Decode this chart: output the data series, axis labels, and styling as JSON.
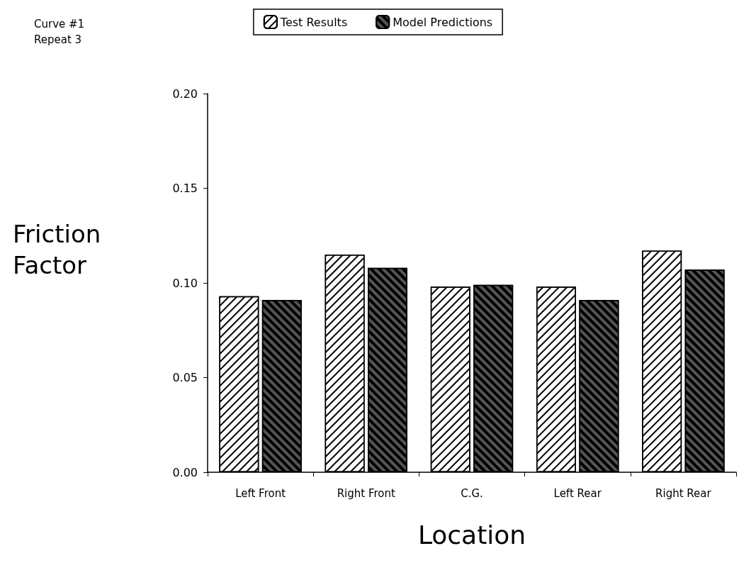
{
  "chart_data": {
    "type": "bar",
    "xlabel": "Location",
    "ylabel": "Friction Factor",
    "annotations": [
      "Curve #1",
      "Repeat 3"
    ],
    "categories": [
      "Left Front",
      "Right Front",
      "C.G.",
      "Left Rear",
      "Right Rear"
    ],
    "series": [
      {
        "name": "Test Results",
        "color": "#ffffff",
        "values": [
          0.093,
          0.115,
          0.098,
          0.098,
          0.117
        ]
      },
      {
        "name": "Model Predictions",
        "color": "#555555",
        "values": [
          0.091,
          0.108,
          0.099,
          0.091,
          0.107
        ]
      }
    ],
    "ylim": [
      0,
      0.2
    ],
    "yticks": [
      {
        "value": 0,
        "label": "0.00"
      },
      {
        "value": 0.05,
        "label": "0.05"
      },
      {
        "value": 0.1,
        "label": "0.10"
      },
      {
        "value": 0.15,
        "label": "0.15"
      },
      {
        "value": 0.2,
        "label": "0.20"
      }
    ],
    "grid": false,
    "legend": "top"
  }
}
